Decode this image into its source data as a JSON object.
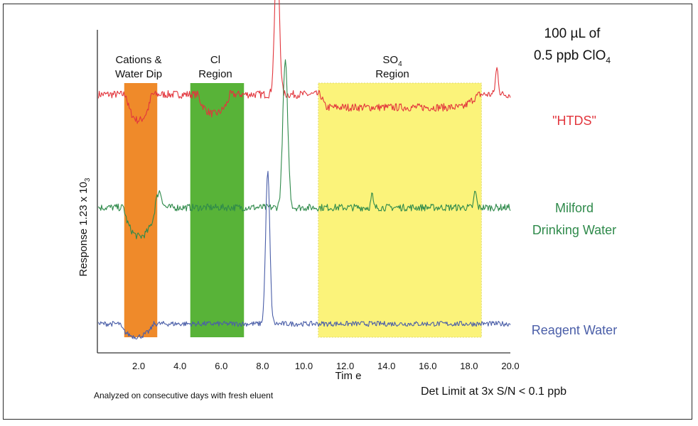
{
  "colors": {
    "htds": "#e2353c",
    "milford": "#2f8a4b",
    "reagent": "#4a5ea8",
    "cations_band": "#ef8a2a",
    "cl_band": "#58b338",
    "so4_band": "#fbf37a"
  },
  "annotations": {
    "header_line1": "100 µL of",
    "header_line2_prefix": "0.5 ppb ClO",
    "header_line2_sub": "4",
    "cations_line1": "Cations &",
    "cations_line2": "Water Dip",
    "cl_line1": "Cl",
    "cl_line2": "Region",
    "so4_main": "SO",
    "so4_sub": "4",
    "so4_line2": "Region",
    "footnote": "Analyzed on consecutive days with fresh eluent",
    "det_limit": "Det  Limit at 3x S/N < 0.1 ppb"
  },
  "chart_data": {
    "type": "line",
    "title": "",
    "xlabel": "Tim e",
    "ylabel": "Response 1.23 x 10",
    "ylabel_sub": "3",
    "xlim": [
      0,
      20
    ],
    "x_ticks": [
      "2.0",
      "4.0",
      "6.0",
      "8.0",
      "10.0",
      "12.0",
      "14.0",
      "16.0",
      "18.0",
      "20.0"
    ],
    "regions": [
      {
        "name": "cations_water_dip",
        "x_start": 1.3,
        "x_end": 2.9
      },
      {
        "name": "cl_region",
        "x_start": 4.5,
        "x_end": 7.1
      },
      {
        "name": "so4_region",
        "x_start": 10.7,
        "x_end": 18.6
      }
    ],
    "series": [
      {
        "name": "\"HTDS\"",
        "label_line1": "\"HTDS\"",
        "label_line2": "",
        "baseline": 0.8,
        "x_start": 0.05,
        "x_end": 20.0,
        "noise": 0.012,
        "features": [
          {
            "kind": "dip",
            "x_start": 1.4,
            "x_end": 2.6,
            "depth": -0.08
          },
          {
            "kind": "dip",
            "x_start": 4.9,
            "x_end": 6.4,
            "depth": -0.06
          },
          {
            "kind": "peak",
            "center": 8.7,
            "height": 0.46,
            "width": 0.11
          },
          {
            "kind": "step",
            "x_start": 10.8,
            "x_end": 18.5,
            "offset": -0.04
          },
          {
            "kind": "peak",
            "center": 19.35,
            "height": 0.08,
            "width": 0.07
          }
        ]
      },
      {
        "name": "Milford Drinking Water",
        "label_line1": "Milford",
        "label_line2": "Drinking Water",
        "baseline": 0.45,
        "x_start": 0.05,
        "x_end": 20.0,
        "noise": 0.011,
        "features": [
          {
            "kind": "dip",
            "x_start": 1.3,
            "x_end": 2.8,
            "depth": -0.09
          },
          {
            "kind": "peak",
            "center": 3.0,
            "height": 0.05,
            "width": 0.12
          },
          {
            "kind": "peak",
            "center": 9.1,
            "height": 0.45,
            "width": 0.12
          },
          {
            "kind": "peak",
            "center": 13.3,
            "height": 0.04,
            "width": 0.05
          },
          {
            "kind": "peak",
            "center": 18.3,
            "height": 0.05,
            "width": 0.06
          }
        ]
      },
      {
        "name": "Reagent  Water",
        "label_line1": "Reagent  Water",
        "label_line2": "",
        "baseline": 0.09,
        "x_start": 0.05,
        "x_end": 20.0,
        "noise": 0.008,
        "features": [
          {
            "kind": "dip",
            "x_start": 1.1,
            "x_end": 2.7,
            "depth": -0.04
          },
          {
            "kind": "peak",
            "center": 8.25,
            "height": 0.47,
            "width": 0.1
          }
        ]
      }
    ]
  }
}
